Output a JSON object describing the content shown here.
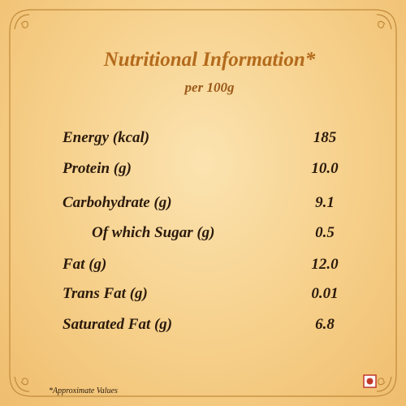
{
  "header": {
    "title": "Nutritional Information*",
    "subtitle": "per 100g"
  },
  "table": {
    "rows": [
      [
        "Energy (kcal)",
        "185"
      ],
      [
        "Protein (g)",
        "10.0"
      ],
      [
        "Carbohydrate (g)",
        "9.1"
      ],
      [
        "Of which Sugar (g)",
        "0.5"
      ],
      [
        "Fat (g)",
        "12.0"
      ],
      [
        "Trans Fat (g)",
        "0.01"
      ],
      [
        "Saturated Fat (g)",
        "6.8"
      ]
    ]
  },
  "footnote": "*Approximate Values"
}
